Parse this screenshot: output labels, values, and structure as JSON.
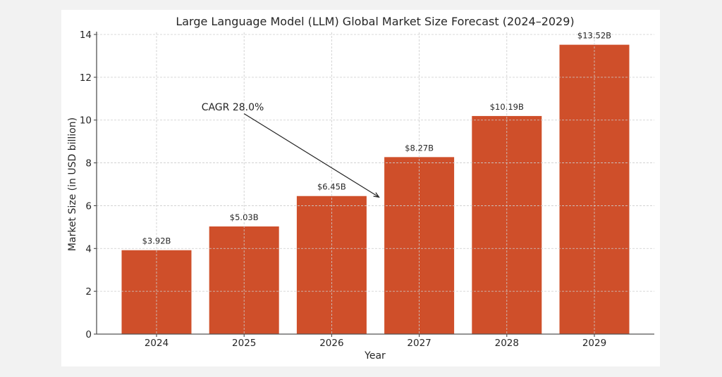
{
  "chart_data": {
    "type": "bar",
    "title": "Large Language Model (LLM) Global Market Size Forecast (2024–2029)",
    "xlabel": "Year",
    "ylabel": "Market Size (in USD billion)",
    "categories": [
      "2024",
      "2025",
      "2026",
      "2027",
      "2028",
      "2029"
    ],
    "values": [
      3.92,
      5.03,
      6.45,
      8.27,
      10.19,
      13.52
    ],
    "data_labels": [
      "$3.92B",
      "$5.03B",
      "$6.45B",
      "$8.27B",
      "$10.19B",
      "$13.52B"
    ],
    "ylim": [
      0,
      14
    ],
    "yticks": [
      "0",
      "2",
      "4",
      "6",
      "8",
      "10",
      "12",
      "14"
    ],
    "grid": true,
    "bar_color": "#cf4f2a",
    "annotation": {
      "text": "CAGR 28.0%",
      "color": "#6b8e23",
      "arrow_from": {
        "year": "2025",
        "value": 10.3
      },
      "arrow_to": {
        "year": "2026.5",
        "value": 6.4
      }
    }
  }
}
